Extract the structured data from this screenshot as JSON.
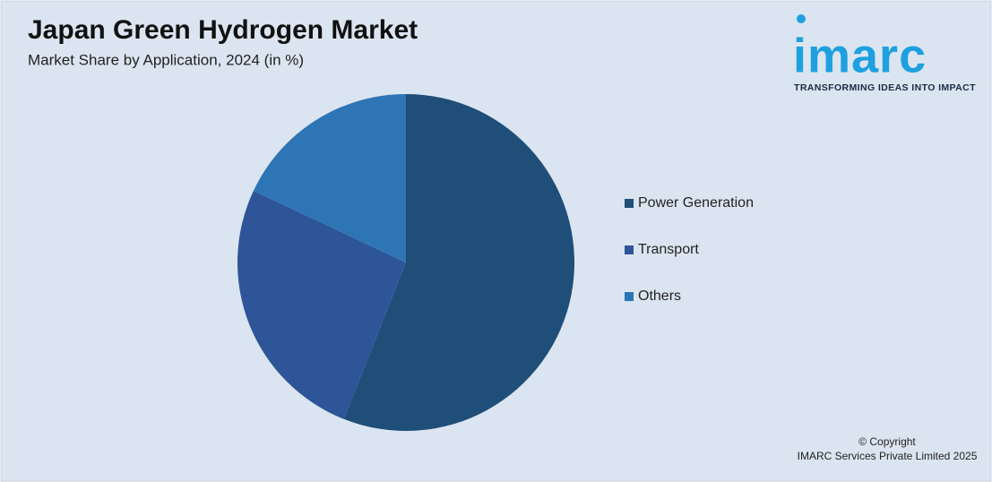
{
  "chart_data": {
    "type": "pie",
    "title": "Japan Green Hydrogen Market",
    "subtitle": "Market Share by Application, 2024 (in %)",
    "categories": [
      "Power Generation",
      "Transport",
      "Others"
    ],
    "values": [
      56,
      26,
      18
    ],
    "colors": [
      "#1f4e79",
      "#2e5597",
      "#2e75b6"
    ],
    "legend": "right"
  },
  "logo": {
    "name": "imarc",
    "tagline": "TRANSFORMING IDEAS INTO IMPACT"
  },
  "footer": {
    "copyright": "© Copyright",
    "owner": "IMARC Services Private Limited 2025"
  }
}
